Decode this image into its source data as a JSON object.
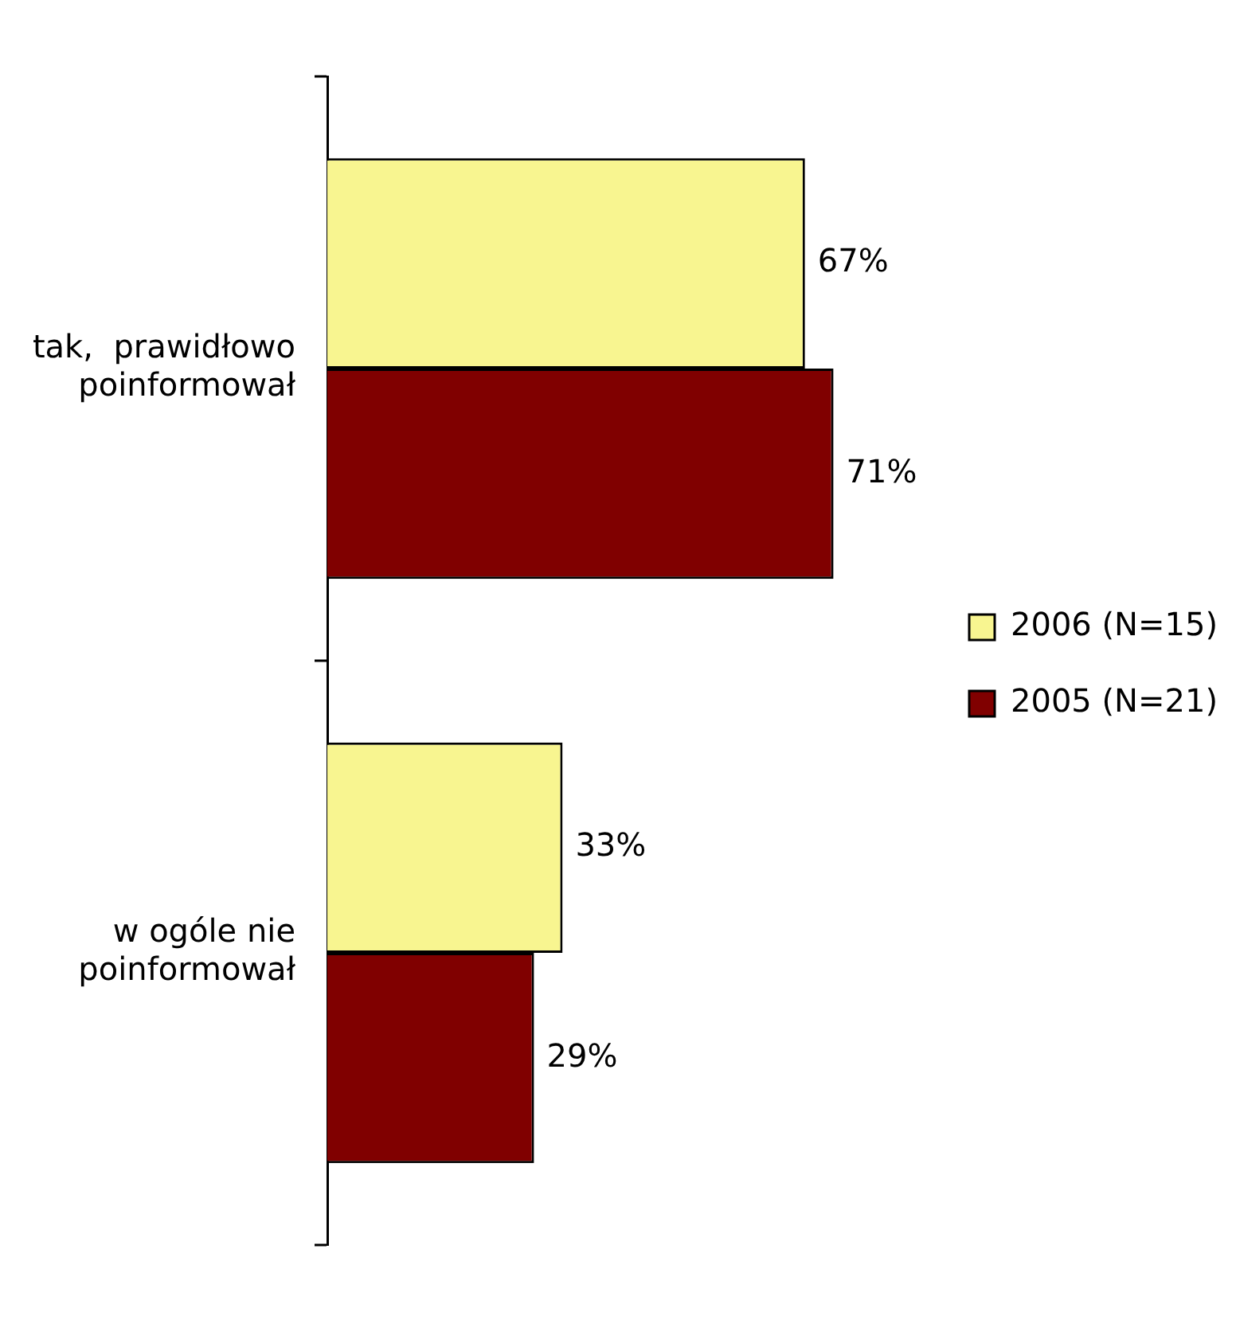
{
  "chart_data": {
    "type": "bar",
    "orientation": "horizontal",
    "categories": [
      "tak,  prawidłowo poinformował",
      "w ogóle nie poinformował"
    ],
    "series": [
      {
        "name": "2006 (N=15)",
        "color": "#f8f590",
        "values": [
          67,
          33
        ],
        "value_labels": [
          "67%",
          "33%"
        ]
      },
      {
        "name": "2005 (N=21)",
        "color": "#800000",
        "values": [
          71,
          29
        ],
        "value_labels": [
          "71%",
          "29%"
        ]
      }
    ],
    "legend": "right"
  }
}
